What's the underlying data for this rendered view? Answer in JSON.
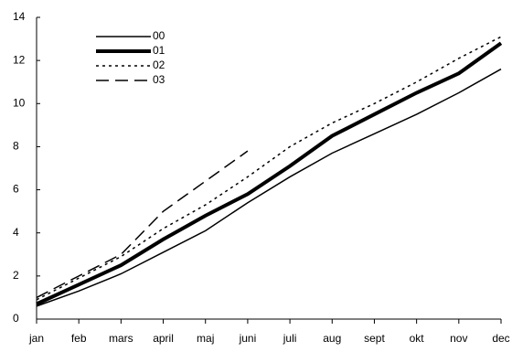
{
  "chart_data": {
    "type": "line",
    "categories": [
      "jan",
      "feb",
      "mars",
      "april",
      "maj",
      "juni",
      "juli",
      "aug",
      "sept",
      "okt",
      "nov",
      "dec"
    ],
    "series": [
      {
        "name": "00",
        "color": "#000000",
        "linestyle": "solid",
        "linewidth": 1.5,
        "values": [
          0.6,
          1.3,
          2.1,
          3.1,
          4.1,
          5.4,
          6.6,
          7.7,
          8.6,
          9.5,
          10.5,
          11.6
        ]
      },
      {
        "name": "01",
        "color": "#000000",
        "linestyle": "solid",
        "linewidth": 4,
        "values": [
          0.7,
          1.6,
          2.5,
          3.7,
          4.8,
          5.8,
          7.1,
          8.5,
          9.5,
          10.5,
          11.4,
          12.8
        ]
      },
      {
        "name": "02",
        "color": "#000000",
        "linestyle": "dotted",
        "linewidth": 1.5,
        "values": [
          0.9,
          1.9,
          2.9,
          4.2,
          5.3,
          6.6,
          8.0,
          9.1,
          10.0,
          11.0,
          12.1,
          13.1
        ]
      },
      {
        "name": "03",
        "color": "#000000",
        "linestyle": "dashed",
        "linewidth": 1.5,
        "values": [
          1.0,
          2.0,
          3.0,
          5.0,
          6.4,
          7.8,
          null,
          null,
          null,
          null,
          null,
          null
        ]
      }
    ],
    "ylim": [
      0,
      14
    ],
    "yticks": [
      0,
      2,
      4,
      6,
      8,
      10,
      12,
      14
    ],
    "grid": false,
    "legend": "top-left"
  }
}
